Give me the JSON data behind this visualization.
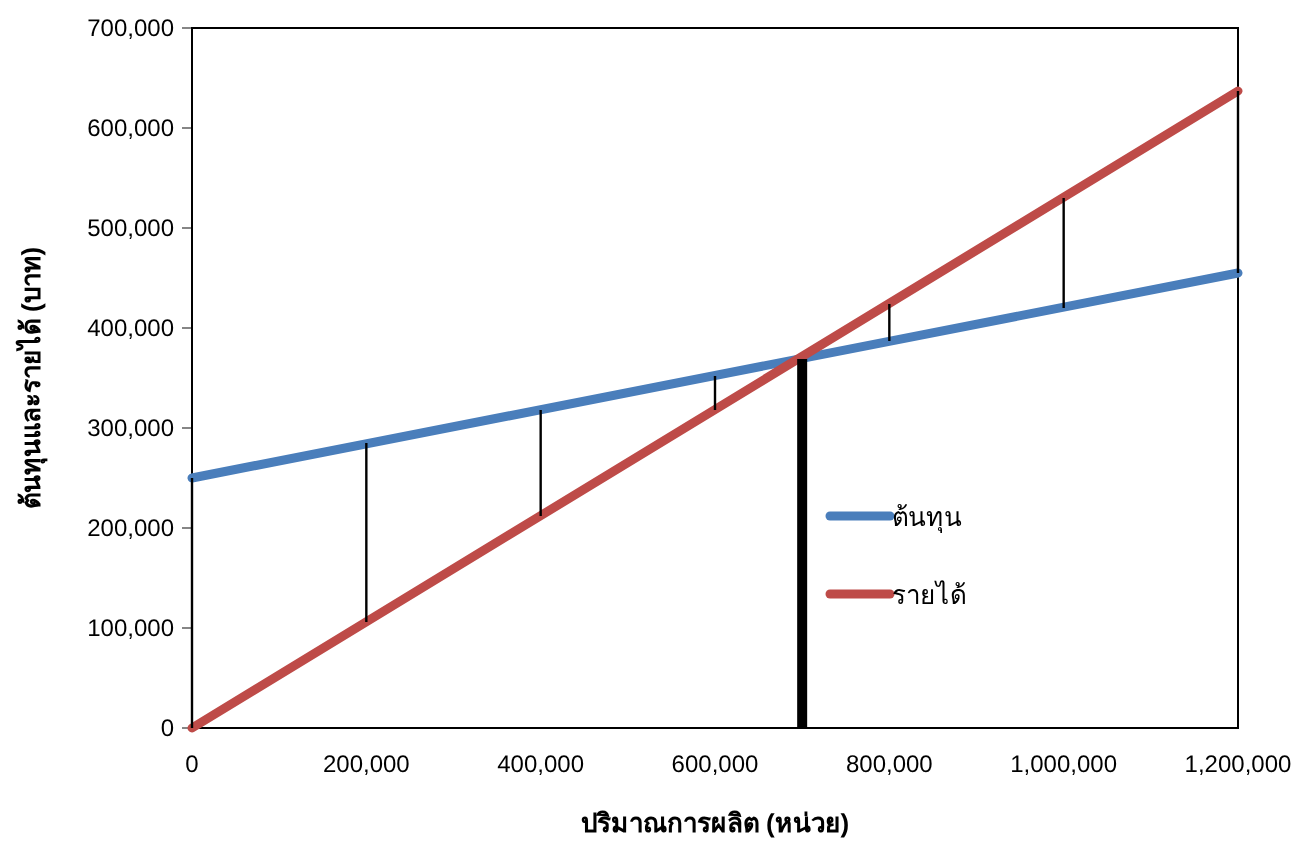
{
  "chart_data": {
    "type": "line",
    "xlabel": "ปริมาณการผลิต (หน่วย)",
    "ylabel": "ต้นทุนและรายได้ (บาท)",
    "xlim": [
      0,
      1200000
    ],
    "ylim": [
      0,
      700000
    ],
    "xticks": [
      {
        "value": 0,
        "label": "0"
      },
      {
        "value": 200000,
        "label": "200,000"
      },
      {
        "value": 400000,
        "label": "400,000"
      },
      {
        "value": 600000,
        "label": "600,000"
      },
      {
        "value": 800000,
        "label": "800,000"
      },
      {
        "value": 1000000,
        "label": "1,000,000"
      },
      {
        "value": 1200000,
        "label": "1,200,000"
      }
    ],
    "yticks": [
      {
        "value": 0,
        "label": "0"
      },
      {
        "value": 100000,
        "label": "100,000"
      },
      {
        "value": 200000,
        "label": "200,000"
      },
      {
        "value": 300000,
        "label": "300,000"
      },
      {
        "value": 400000,
        "label": "400,000"
      },
      {
        "value": 500000,
        "label": "500,000"
      },
      {
        "value": 600000,
        "label": "600,000"
      },
      {
        "value": 700000,
        "label": "700,000"
      }
    ],
    "grid": false,
    "legend": "right",
    "marker": "none",
    "series": [
      {
        "name": "ต้นทุน",
        "color": "#4a7ebb",
        "x": [
          0,
          1200000
        ],
        "values": [
          250000,
          455000
        ]
      },
      {
        "name": "รายได้",
        "color": "#be4b48",
        "x": [
          0,
          1200000
        ],
        "values": [
          0,
          637000
        ]
      },
      {
        "color": "#000000",
        "x": [
          0,
          0
        ],
        "values": [
          0,
          250000
        ]
      },
      {
        "color": "#000000",
        "x": [
          200000,
          200000
        ],
        "values": [
          106000,
          285000
        ]
      },
      {
        "color": "#000000",
        "x": [
          400000,
          400000
        ],
        "values": [
          212000,
          318000
        ]
      },
      {
        "color": "#000000",
        "x": [
          600000,
          600000
        ],
        "values": [
          318000,
          352000
        ]
      },
      {
        "color": "#000000",
        "x": [
          800000,
          800000
        ],
        "values": [
          387000,
          424000
        ]
      },
      {
        "color": "#000000",
        "x": [
          1000000,
          1000000
        ],
        "values": [
          420000,
          530000
        ]
      },
      {
        "color": "#000000",
        "x": [
          1200000,
          1200000
        ],
        "values": [
          455000,
          637000
        ]
      },
      {
        "type": "bar",
        "color": "#000000",
        "x": [
          700000
        ],
        "values": [
          369000
        ]
      }
    ]
  }
}
